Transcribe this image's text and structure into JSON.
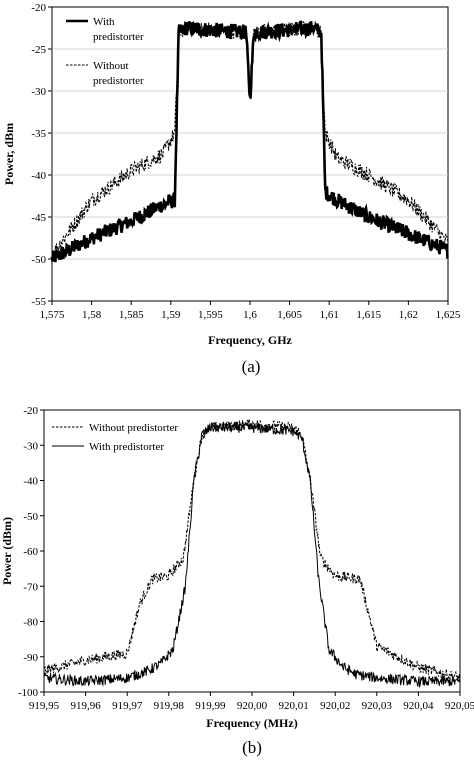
{
  "chart_data": [
    {
      "type": "line",
      "caption": "(a)",
      "xlabel": "Frequency, GHz",
      "ylabel": "Power, dBm",
      "xlim": [
        1.575,
        1.625
      ],
      "ylim": [
        -55,
        -20
      ],
      "x_ticks": [
        1.575,
        1.58,
        1.585,
        1.59,
        1.595,
        1.6,
        1.605,
        1.61,
        1.615,
        1.62,
        1.625
      ],
      "x_tick_labels": [
        "1,575",
        "1,58",
        "1,585",
        "1,59",
        "1,595",
        "1,6",
        "1,605",
        "1,61",
        "1,615",
        "1,62",
        "1,625"
      ],
      "y_ticks": [
        -55,
        -50,
        -45,
        -40,
        -35,
        -30,
        -25,
        -20
      ],
      "y_tick_labels": [
        "-55",
        "-50",
        "-45",
        "-40",
        "-35",
        "-30",
        "-25",
        "-20"
      ],
      "legend_position": "top-left",
      "series": [
        {
          "name": "With predistorter",
          "legend_lines": [
            "With",
            "predistorter"
          ],
          "style": "solid-thick",
          "x": [
            1.575,
            1.58,
            1.585,
            1.589,
            1.5905,
            1.591,
            1.592,
            1.596,
            1.5995,
            1.6,
            1.6005,
            1.604,
            1.608,
            1.609,
            1.6095,
            1.611,
            1.615,
            1.62,
            1.625
          ],
          "y": [
            -50,
            -47.5,
            -45.5,
            -43.5,
            -43,
            -23,
            -22.5,
            -22.8,
            -23,
            -31,
            -23,
            -22.8,
            -22.5,
            -23,
            -42,
            -43,
            -45,
            -47,
            -49
          ]
        },
        {
          "name": "Without predistorter",
          "legend_lines": [
            "Without",
            "predistorter"
          ],
          "style": "dashed",
          "x": [
            1.575,
            1.58,
            1.585,
            1.589,
            1.5905,
            1.591,
            1.592,
            1.596,
            1.5995,
            1.6,
            1.6005,
            1.604,
            1.608,
            1.609,
            1.6095,
            1.611,
            1.615,
            1.62,
            1.625
          ],
          "y": [
            -49.5,
            -43,
            -39.5,
            -37.5,
            -35,
            -23,
            -22.5,
            -22.8,
            -23,
            -31,
            -23,
            -22.8,
            -22.5,
            -23,
            -35,
            -38,
            -40,
            -43,
            -48
          ]
        }
      ]
    },
    {
      "type": "line",
      "caption": "(b)",
      "xlabel": "Frequency (MHz)",
      "ylabel": "Power (dBm)",
      "xlim": [
        919.95,
        920.05
      ],
      "ylim": [
        -100,
        -20
      ],
      "x_ticks": [
        919.95,
        919.96,
        919.97,
        919.98,
        919.99,
        920.0,
        920.01,
        920.02,
        920.03,
        920.04,
        920.05
      ],
      "x_tick_labels": [
        "919,95",
        "919,96",
        "919,97",
        "919,98",
        "919,99",
        "920,00",
        "920,01",
        "920,02",
        "920,03",
        "920,04",
        "920,05"
      ],
      "y_ticks": [
        -100,
        -90,
        -80,
        -70,
        -60,
        -50,
        -40,
        -30,
        -20
      ],
      "y_tick_labels": [
        "-100",
        "-90",
        "-80",
        "-70",
        "-60",
        "-50",
        "-40",
        "-30",
        "-20"
      ],
      "legend_position": "top-left",
      "series": [
        {
          "name": "Without predistorter",
          "style": "dashed",
          "x": [
            919.95,
            919.96,
            919.97,
            919.973,
            919.976,
            919.98,
            919.9835,
            919.986,
            919.988,
            919.99,
            920.0,
            920.01,
            920.012,
            920.014,
            920.0165,
            920.02,
            920.026,
            920.03,
            920.04,
            920.05
          ],
          "y": [
            -94,
            -91,
            -89,
            -75,
            -68,
            -67,
            -62,
            -40,
            -27,
            -25,
            -24,
            -25,
            -27,
            -40,
            -62,
            -67,
            -68,
            -87,
            -93,
            -96
          ]
        },
        {
          "name": "With predistorter",
          "style": "solid",
          "x": [
            919.95,
            919.96,
            919.97,
            919.975,
            919.978,
            919.981,
            919.984,
            919.986,
            919.988,
            919.99,
            920.0,
            920.01,
            920.012,
            920.014,
            920.016,
            920.0185,
            920.022,
            920.025,
            920.03,
            920.04,
            920.05
          ],
          "y": [
            -96,
            -97,
            -96,
            -94,
            -92,
            -88,
            -70,
            -40,
            -27,
            -25,
            -25,
            -26,
            -28,
            -40,
            -68,
            -88,
            -93,
            -95,
            -96,
            -97,
            -97
          ]
        }
      ]
    }
  ]
}
